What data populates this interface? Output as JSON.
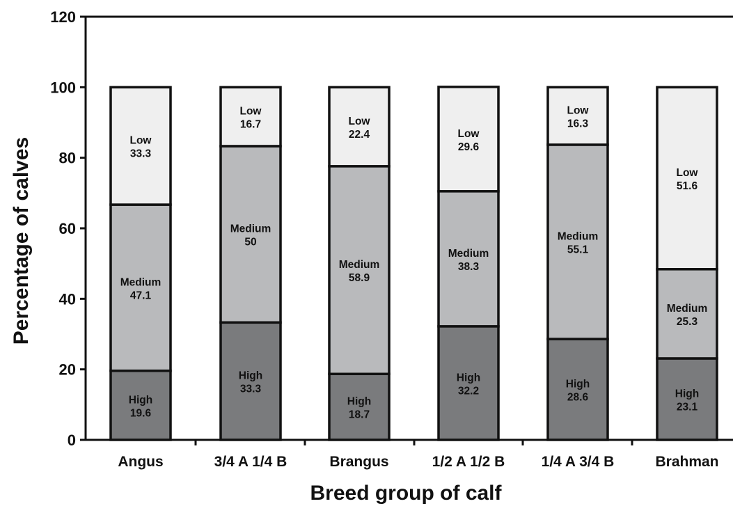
{
  "chart_data": {
    "type": "bar",
    "stacked": true,
    "title": "",
    "xlabel": "Breed group of calf",
    "ylabel": "Percentage of calves",
    "ylim": [
      0,
      120
    ],
    "yticks": [
      0,
      20,
      40,
      60,
      80,
      100,
      120
    ],
    "grid": false,
    "legend": "none",
    "categories": [
      "Angus",
      "3/4 A 1/4 B",
      "Brangus",
      "1/2 A 1/2 B",
      "1/4 A 3/4 B",
      "Brahman"
    ],
    "series": [
      {
        "name": "High",
        "values": [
          19.6,
          33.3,
          18.7,
          32.2,
          28.6,
          23.1
        ],
        "color": "#7a7b7d"
      },
      {
        "name": "Medium",
        "values": [
          47.1,
          50,
          58.9,
          38.3,
          55.1,
          25.3
        ],
        "color": "#b9babc"
      },
      {
        "name": "Low",
        "values": [
          33.3,
          16.7,
          22.4,
          29.6,
          16.3,
          51.6
        ],
        "color": "#efefef"
      }
    ]
  }
}
